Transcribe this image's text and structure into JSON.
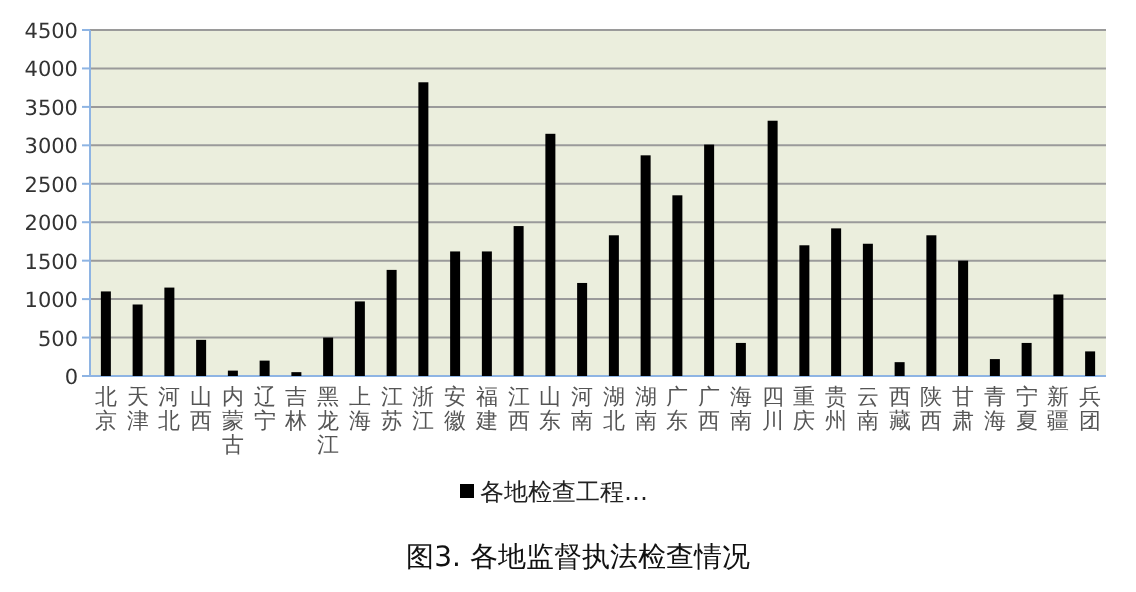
{
  "chart_data": {
    "type": "bar",
    "title": "图3. 各地监督执法检查情况",
    "categories": [
      "北京",
      "天津",
      "河北",
      "山西",
      "内蒙古",
      "辽宁",
      "吉林",
      "黑龙江",
      "上海",
      "江苏",
      "浙江",
      "安徽",
      "福建",
      "江西",
      "山东",
      "河南",
      "湖北",
      "湖南",
      "广东",
      "广西",
      "海南",
      "四川",
      "重庆",
      "贵州",
      "云南",
      "西藏",
      "陕西",
      "甘肃",
      "青海",
      "宁夏",
      "新疆",
      "兵团"
    ],
    "series": [
      {
        "name": "各地检查工程…",
        "color": "#000000",
        "values": [
          1100,
          930,
          1150,
          470,
          70,
          200,
          50,
          500,
          970,
          1380,
          3820,
          1620,
          1620,
          1950,
          3150,
          1210,
          1830,
          2870,
          2350,
          3010,
          430,
          3320,
          1700,
          1920,
          1720,
          180,
          1830,
          1500,
          220,
          430,
          1060,
          320
        ]
      }
    ],
    "ylim": [
      0,
      4500
    ],
    "yticks": [
      0,
      500,
      1000,
      1500,
      2000,
      2500,
      3000,
      3500,
      4000,
      4500
    ],
    "grid": "y",
    "legend": "bottom"
  }
}
